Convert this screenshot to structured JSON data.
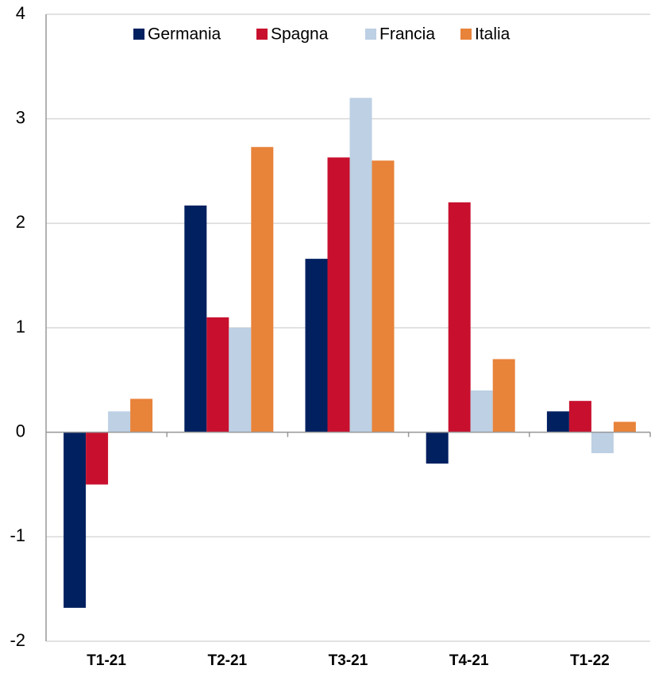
{
  "chart_data": {
    "type": "bar",
    "categories": [
      "T1-21",
      "T2-21",
      "T3-21",
      "T4-21",
      "T1-22"
    ],
    "series": [
      {
        "name": "Germania",
        "color": "#002060",
        "values": [
          -1.68,
          2.17,
          1.66,
          -0.3,
          0.2
        ]
      },
      {
        "name": "Spagna",
        "color": "#c8102e",
        "values": [
          -0.5,
          1.1,
          2.63,
          2.2,
          0.3
        ]
      },
      {
        "name": "Francia",
        "color": "#bdd0e4",
        "values": [
          0.2,
          1.0,
          3.2,
          0.4,
          -0.2
        ]
      },
      {
        "name": "Italia",
        "color": "#e8833a",
        "values": [
          0.32,
          2.73,
          2.6,
          0.7,
          0.1
        ]
      }
    ],
    "ylim": [
      -2,
      4
    ],
    "yticks": [
      -2,
      -1,
      0,
      1,
      2,
      3,
      4
    ],
    "grid": true,
    "legend": "top"
  }
}
